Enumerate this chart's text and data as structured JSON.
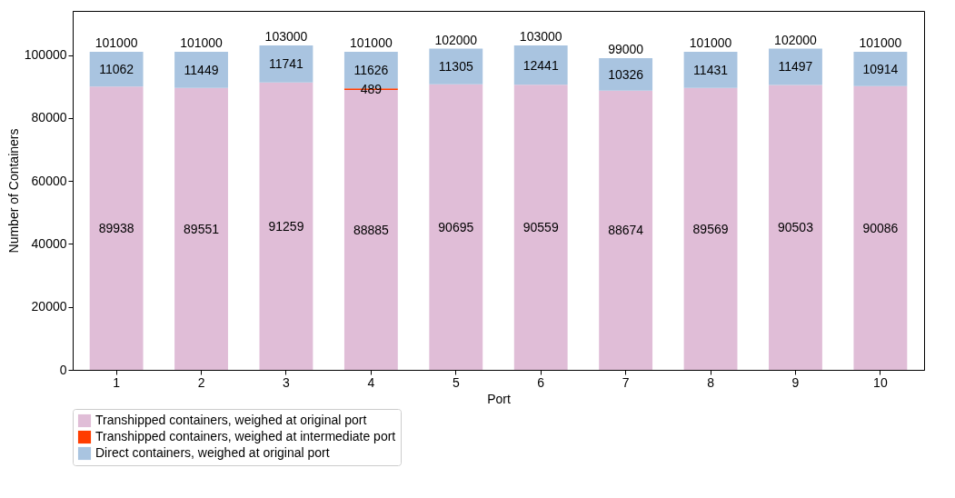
{
  "chart_data": {
    "type": "bar",
    "stacked": true,
    "xlabel": "Port",
    "ylabel": "Number of Containers",
    "categories": [
      "1",
      "2",
      "3",
      "4",
      "5",
      "6",
      "7",
      "8",
      "9",
      "10"
    ],
    "series": [
      {
        "name": "Transhipped containers, weighed at original port",
        "color": "#e0bdd7",
        "values": [
          89938,
          89551,
          91259,
          88885,
          90695,
          90559,
          88674,
          89569,
          90503,
          90086
        ],
        "value_labels": [
          "89938",
          "89551",
          "91259",
          "88885",
          "90695",
          "90559",
          "88674",
          "89569",
          "90503",
          "90086"
        ]
      },
      {
        "name": "Transhipped containers, weighed at intermediate port",
        "color": "#ff3d00",
        "values": [
          0,
          0,
          0,
          489,
          0,
          0,
          0,
          0,
          0,
          0
        ],
        "value_labels": [
          null,
          null,
          null,
          "489",
          null,
          null,
          null,
          null,
          null,
          null
        ]
      },
      {
        "name": "Direct containers, weighed at original port",
        "color": "#a9c4e0",
        "values": [
          11062,
          11449,
          11741,
          11626,
          11305,
          12441,
          10326,
          11431,
          11497,
          10914
        ],
        "value_labels": [
          "11062",
          "11449",
          "11741",
          "11626",
          "11305",
          "12441",
          "10326",
          "11431",
          "11497",
          "10914"
        ]
      }
    ],
    "totals": [
      "101000",
      "101000",
      "103000",
      "101000",
      "102000",
      "103000",
      "99000",
      "101000",
      "102000",
      "101000"
    ],
    "ylim": [
      0,
      114000
    ],
    "yticks": [
      0,
      20000,
      40000,
      60000,
      80000,
      100000
    ],
    "legend": "bottom"
  }
}
